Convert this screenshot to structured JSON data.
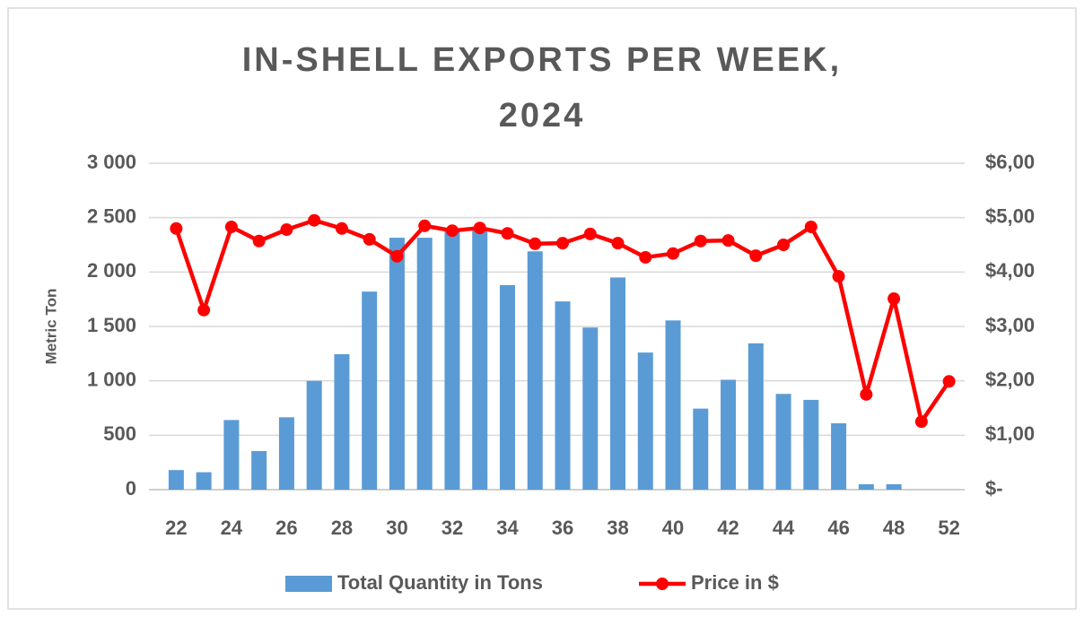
{
  "chart_data": {
    "type": "bar_line",
    "title": "IN-SHELL EXPORTS PER WEEK, 2024",
    "y_label": "Metric Ton",
    "categories": [
      "22",
      null,
      "24",
      null,
      "26",
      null,
      "28",
      null,
      "30",
      null,
      "32",
      null,
      "34",
      null,
      "36",
      null,
      "38",
      null,
      "40",
      null,
      "42",
      null,
      "44",
      null,
      "46",
      null,
      "48",
      null,
      "52"
    ],
    "series": [
      {
        "name": "Total Quantity in Tons",
        "type": "bar",
        "color": "#5b9bd5",
        "values": [
          180,
          160,
          640,
          355,
          665,
          1000,
          1245,
          1820,
          2315,
          2315,
          2400,
          2390,
          1880,
          2190,
          1730,
          1490,
          1950,
          1260,
          1555,
          745,
          1010,
          1345,
          880,
          825,
          610,
          50,
          50,
          null,
          null
        ]
      },
      {
        "name": "Price in $",
        "type": "line",
        "axis": "y2",
        "color": "#ff0000",
        "values": [
          4.8,
          3.3,
          4.83,
          4.57,
          4.78,
          4.95,
          4.8,
          4.6,
          4.29,
          4.85,
          4.76,
          4.81,
          4.71,
          4.52,
          4.53,
          4.7,
          4.53,
          4.27,
          4.34,
          4.57,
          4.58,
          4.3,
          4.5,
          4.83,
          3.92,
          1.75,
          3.51,
          1.25,
          1.99
        ]
      }
    ],
    "ylim": [
      0,
      3000
    ],
    "yticks": [
      0,
      500,
      {
        "value": 1000,
        "label": "1 000"
      },
      {
        "value": 1500,
        "label": "1 500"
      },
      {
        "value": 2000,
        "label": "2 000"
      },
      {
        "value": 2500,
        "label": "2 500"
      },
      {
        "value": 3000,
        "label": "3 000"
      }
    ],
    "y2lim": [
      0,
      6
    ],
    "y2ticks": [
      {
        "value": 0,
        "label": "$-"
      },
      {
        "value": 1,
        "label": "$1,00"
      },
      {
        "value": 2,
        "label": "$2,00"
      },
      {
        "value": 3,
        "label": "$3,00"
      },
      {
        "value": 4,
        "label": "$4,00"
      },
      {
        "value": 5,
        "label": "$5,00"
      },
      {
        "value": 6,
        "label": "$6,00"
      }
    ],
    "grid": true,
    "legend": "bottom"
  }
}
